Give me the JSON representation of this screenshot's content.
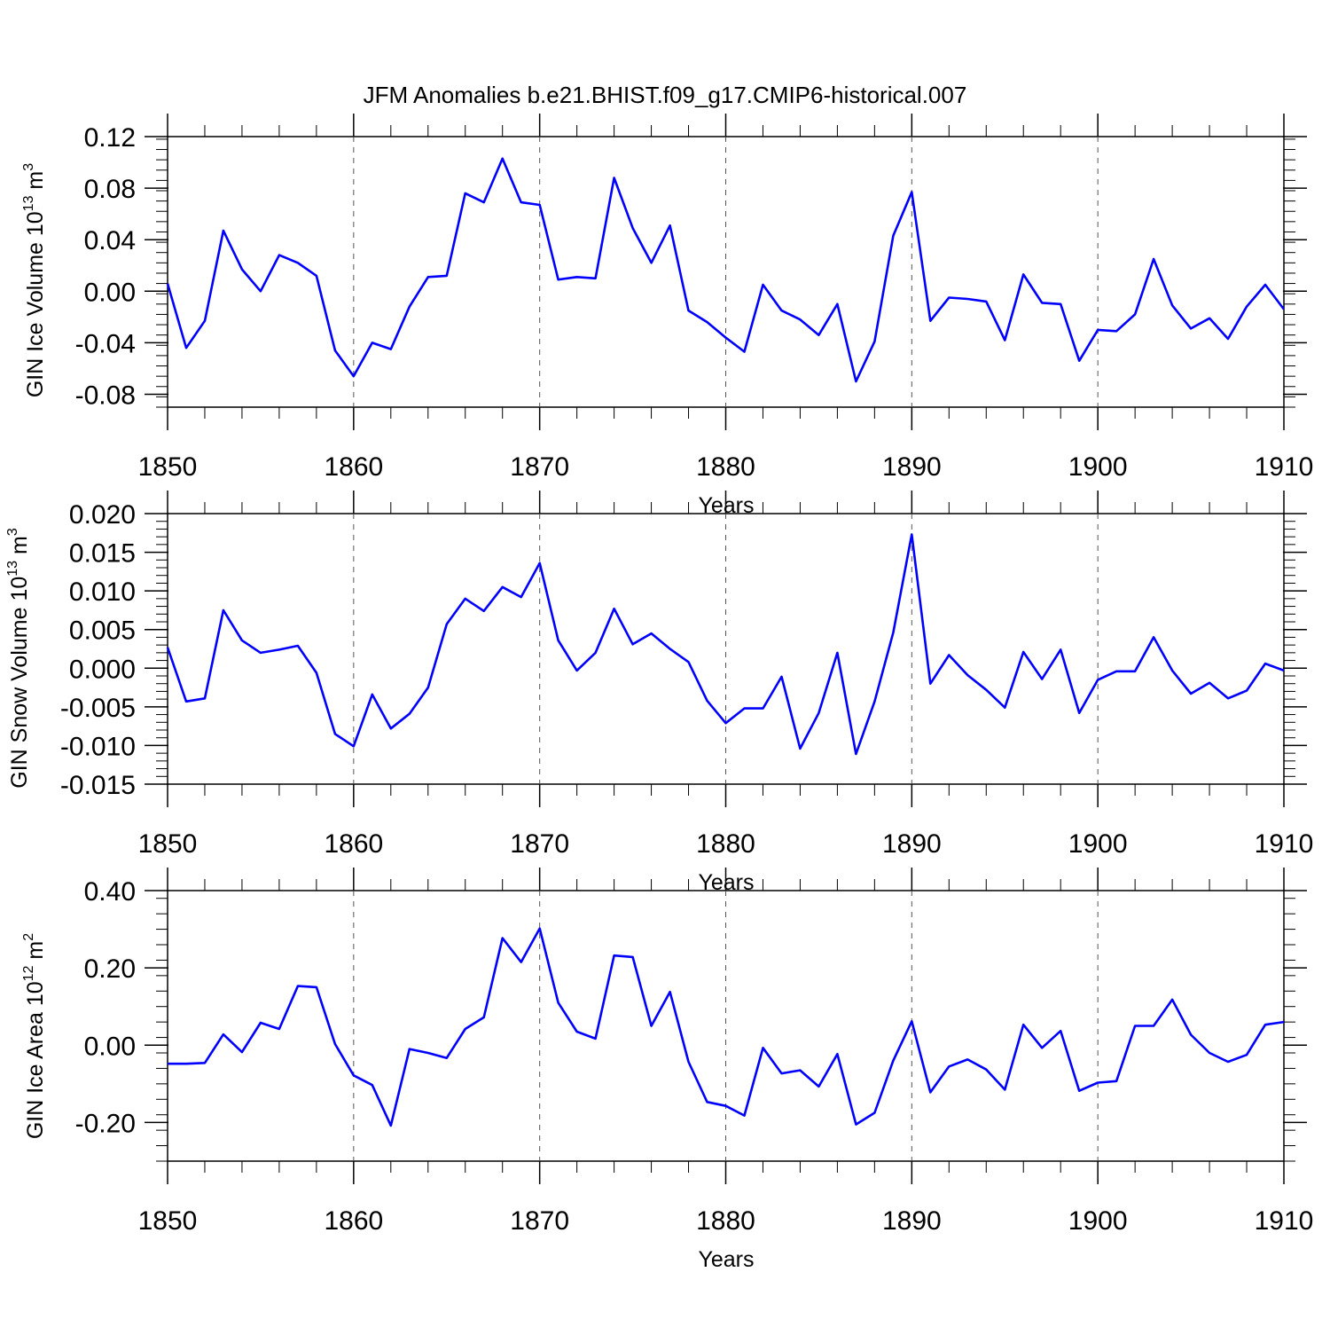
{
  "figure": {
    "title": "JFM Anomalies b.e21.BHIST.f09_g17.CMIP6-historical.007",
    "line_color": "#0000ff",
    "grid_color": "#555555"
  },
  "chart_data": [
    {
      "type": "line",
      "title": "",
      "xlabel": "Years",
      "ylabel": "GIN Ice Volume 10",
      "ylabel_sup_exp": "13",
      "ylabel_unit": " m",
      "ylabel_unit_sup": "3",
      "xlim": [
        1850,
        1910
      ],
      "ylim": [
        -0.09,
        0.12
      ],
      "xticks": [
        1850,
        1860,
        1870,
        1880,
        1890,
        1900,
        1910
      ],
      "xtick_labels": [
        "1850",
        "1860",
        "1870",
        "1880",
        "1890",
        "1900",
        "1910"
      ],
      "yticks": [
        -0.08,
        -0.04,
        0.0,
        0.04,
        0.08,
        0.12
      ],
      "ytick_labels": [
        "-0.08",
        "-0.04",
        "0.00",
        "0.04",
        "0.08",
        "0.12"
      ],
      "grid": "vertical dashed at labeled x ticks",
      "series": [
        {
          "name": "GIN Ice Volume",
          "x": [
            1850,
            1851,
            1852,
            1853,
            1854,
            1855,
            1856,
            1857,
            1858,
            1859,
            1860,
            1861,
            1862,
            1863,
            1864,
            1865,
            1866,
            1867,
            1868,
            1869,
            1870,
            1871,
            1872,
            1873,
            1874,
            1875,
            1876,
            1877,
            1878,
            1879,
            1880,
            1881,
            1882,
            1883,
            1884,
            1885,
            1886,
            1887,
            1888,
            1889,
            1890,
            1891,
            1892,
            1893,
            1894,
            1895,
            1896,
            1897,
            1898,
            1899,
            1900,
            1901,
            1902,
            1903,
            1904,
            1905,
            1906,
            1907,
            1908,
            1909,
            1910
          ],
          "values": [
            0.006,
            -0.044,
            -0.023,
            0.047,
            0.017,
            0.0,
            0.028,
            0.022,
            0.012,
            -0.046,
            -0.066,
            -0.04,
            -0.045,
            -0.012,
            0.011,
            0.012,
            0.076,
            0.069,
            0.103,
            0.069,
            0.067,
            0.009,
            0.011,
            0.01,
            0.088,
            0.049,
            0.022,
            0.051,
            -0.015,
            -0.024,
            -0.036,
            -0.047,
            0.005,
            -0.015,
            -0.022,
            -0.034,
            -0.01,
            -0.07,
            -0.039,
            0.043,
            0.077,
            -0.023,
            -0.005,
            -0.006,
            -0.008,
            -0.038,
            0.013,
            -0.009,
            -0.01,
            -0.054,
            -0.03,
            -0.031,
            -0.018,
            0.025,
            -0.011,
            -0.029,
            -0.021,
            -0.037,
            -0.012,
            0.005,
            -0.014
          ]
        }
      ]
    },
    {
      "type": "line",
      "title": "",
      "xlabel": "Years",
      "ylabel": "GIN Snow Volume 10",
      "ylabel_sup_exp": "13",
      "ylabel_unit": " m",
      "ylabel_unit_sup": "3",
      "xlim": [
        1850,
        1910
      ],
      "ylim": [
        -0.015,
        0.02
      ],
      "xticks": [
        1850,
        1860,
        1870,
        1880,
        1890,
        1900,
        1910
      ],
      "xtick_labels": [
        "1850",
        "1860",
        "1870",
        "1880",
        "1890",
        "1900",
        "1910"
      ],
      "yticks": [
        -0.015,
        -0.01,
        -0.005,
        0.0,
        0.005,
        0.01,
        0.015,
        0.02
      ],
      "ytick_labels": [
        "-0.015",
        "-0.010",
        "-0.005",
        "0.000",
        "0.005",
        "0.010",
        "0.015",
        "0.020"
      ],
      "grid": "vertical dashed at labeled x ticks",
      "series": [
        {
          "name": "GIN Snow Volume",
          "x": [
            1850,
            1851,
            1852,
            1853,
            1854,
            1855,
            1856,
            1857,
            1858,
            1859,
            1860,
            1861,
            1862,
            1863,
            1864,
            1865,
            1866,
            1867,
            1868,
            1869,
            1870,
            1871,
            1872,
            1873,
            1874,
            1875,
            1876,
            1877,
            1878,
            1879,
            1880,
            1881,
            1882,
            1883,
            1884,
            1885,
            1886,
            1887,
            1888,
            1889,
            1890,
            1891,
            1892,
            1893,
            1894,
            1895,
            1896,
            1897,
            1898,
            1899,
            1900,
            1901,
            1902,
            1903,
            1904,
            1905,
            1906,
            1907,
            1908,
            1909,
            1910
          ],
          "values": [
            0.0027,
            -0.0043,
            -0.0039,
            0.0075,
            0.0036,
            0.002,
            0.0024,
            0.0029,
            -0.0006,
            -0.0085,
            -0.0101,
            -0.0034,
            -0.0078,
            -0.0059,
            -0.0025,
            0.0057,
            0.009,
            0.0074,
            0.0105,
            0.0092,
            0.0136,
            0.0036,
            -0.0003,
            0.002,
            0.0077,
            0.0031,
            0.0045,
            0.0025,
            0.0008,
            -0.0042,
            -0.0071,
            -0.0052,
            -0.0052,
            -0.0011,
            -0.0104,
            -0.0058,
            0.002,
            -0.0111,
            -0.0043,
            0.0046,
            0.0173,
            -0.002,
            0.0017,
            -0.0009,
            -0.0028,
            -0.0051,
            0.0021,
            -0.0014,
            0.0024,
            -0.0058,
            -0.0015,
            -0.0004,
            -0.0004,
            0.004,
            -0.0003,
            -0.0033,
            -0.0019,
            -0.0039,
            -0.0029,
            0.0006,
            -0.0003
          ]
        }
      ]
    },
    {
      "type": "line",
      "title": "",
      "xlabel": "Years",
      "ylabel": "GIN Ice Area 10",
      "ylabel_sup_exp": "12",
      "ylabel_unit": " m",
      "ylabel_unit_sup": "2",
      "xlim": [
        1850,
        1910
      ],
      "ylim": [
        -0.3,
        0.4
      ],
      "xticks": [
        1850,
        1860,
        1870,
        1880,
        1890,
        1900,
        1910
      ],
      "xtick_labels": [
        "1850",
        "1860",
        "1870",
        "1880",
        "1890",
        "1900",
        "1910"
      ],
      "yticks": [
        -0.2,
        0.0,
        0.2,
        0.4
      ],
      "ytick_labels": [
        "-0.20",
        "0.00",
        "0.20",
        "0.40"
      ],
      "grid": "vertical dashed at labeled x ticks",
      "series": [
        {
          "name": "GIN Ice Area",
          "x": [
            1850,
            1851,
            1852,
            1853,
            1854,
            1855,
            1856,
            1857,
            1858,
            1859,
            1860,
            1861,
            1862,
            1863,
            1864,
            1865,
            1866,
            1867,
            1868,
            1869,
            1870,
            1871,
            1872,
            1873,
            1874,
            1875,
            1876,
            1877,
            1878,
            1879,
            1880,
            1881,
            1882,
            1883,
            1884,
            1885,
            1886,
            1887,
            1888,
            1889,
            1890,
            1891,
            1892,
            1893,
            1894,
            1895,
            1896,
            1897,
            1898,
            1899,
            1900,
            1901,
            1902,
            1903,
            1904,
            1905,
            1906,
            1907,
            1908,
            1909,
            1910
          ],
          "values": [
            -0.048,
            -0.048,
            -0.046,
            0.028,
            -0.018,
            0.058,
            0.042,
            0.153,
            0.15,
            0.003,
            -0.078,
            -0.103,
            -0.208,
            -0.01,
            -0.02,
            -0.033,
            0.042,
            0.072,
            0.277,
            0.215,
            0.302,
            0.11,
            0.035,
            0.017,
            0.232,
            0.228,
            0.05,
            0.138,
            -0.043,
            -0.147,
            -0.157,
            -0.182,
            -0.007,
            -0.073,
            -0.065,
            -0.107,
            -0.023,
            -0.205,
            -0.175,
            -0.04,
            0.062,
            -0.122,
            -0.055,
            -0.037,
            -0.063,
            -0.115,
            0.053,
            -0.007,
            0.037,
            -0.118,
            -0.097,
            -0.093,
            0.05,
            0.05,
            0.118,
            0.027,
            -0.02,
            -0.043,
            -0.025,
            0.053,
            0.06
          ]
        }
      ]
    }
  ]
}
